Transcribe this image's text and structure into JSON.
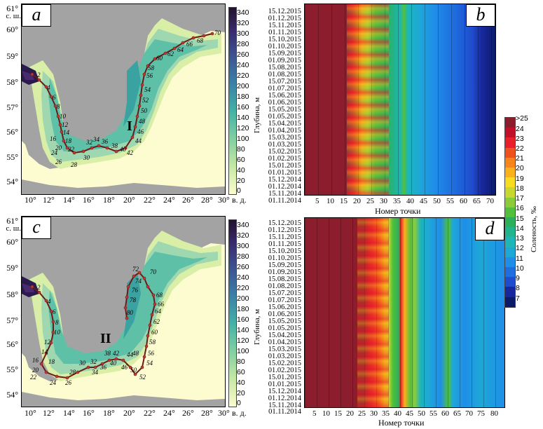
{
  "panels": {
    "a": "a",
    "b": "b",
    "c": "c",
    "d": "d"
  },
  "map": {
    "lat_labels": [
      "61°",
      "60°",
      "59°",
      "58°",
      "57°",
      "56°",
      "55°",
      "54°"
    ],
    "lat_unit": "с. ш.",
    "lon_labels": [
      "10°",
      "12°",
      "14°",
      "16°",
      "18°",
      "20°",
      "22°",
      "24°",
      "26°",
      "28°",
      "30°"
    ],
    "lon_unit": "в. д.",
    "depth_label": "Глубина, м",
    "depth_ticks": [
      "340",
      "320",
      "300",
      "280",
      "260",
      "240",
      "220",
      "200",
      "180",
      "160",
      "140",
      "120",
      "100",
      "80",
      "60",
      "40",
      "20",
      "0"
    ],
    "transect_a_label": "I",
    "transect_c_label": "II",
    "transect_a_points": [
      "2",
      "4",
      "6",
      "8",
      "10",
      "12",
      "14",
      "16",
      "18",
      "20",
      "22",
      "24",
      "26",
      "28",
      "30",
      "32",
      "34",
      "36",
      "38",
      "40",
      "42",
      "44",
      "46",
      "48",
      "50",
      "52",
      "54",
      "56",
      "58",
      "60",
      "62",
      "64",
      "66",
      "68",
      "70"
    ],
    "transect_c_points": [
      "2",
      "4",
      "6",
      "8",
      "10",
      "12",
      "14",
      "16",
      "18",
      "20",
      "22",
      "24",
      "26",
      "28",
      "30",
      "32",
      "34",
      "36",
      "38",
      "40",
      "42",
      "44",
      "46",
      "48",
      "50",
      "52",
      "54",
      "56",
      "58",
      "60",
      "62",
      "64",
      "66",
      "68",
      "70",
      "72",
      "74",
      "76",
      "78",
      "80"
    ]
  },
  "hovmoller": {
    "dates": [
      "15.12.2015",
      "01.12.2015",
      "15.11.2015",
      "01.11.2015",
      "15.10.2015",
      "01.10.2015",
      "15.09.2015",
      "01.09.2015",
      "15.08.2015",
      "01.08.2015",
      "15.07.2015",
      "01.07.2015",
      "15.06.2015",
      "01.06.2015",
      "15.05.2015",
      "01.05.2015",
      "15.04.2015",
      "01.04.2015",
      "15.03.2015",
      "01.03.2015",
      "15.02.2015",
      "01.02.2015",
      "15.01.2015",
      "01.01.2015",
      "15.12.2014",
      "01.12.2014",
      "15.11.2014",
      "01.11.2014"
    ],
    "x_ticks_b": [
      "5",
      "10",
      "15",
      "20",
      "25",
      "30",
      "35",
      "40",
      "45",
      "50",
      "55",
      "60",
      "65",
      "70"
    ],
    "x_ticks_d": [
      "5",
      "10",
      "15",
      "20",
      "25",
      "30",
      "35",
      "40",
      "45",
      "50",
      "55",
      "60",
      "65",
      "70",
      "75",
      "80"
    ],
    "x_label": "Номер точки"
  },
  "salinity_bar": {
    "label": "Соленость, ‰",
    "ticks": [
      ">25",
      "24",
      "23",
      "22",
      "21",
      "20",
      "19",
      "18",
      "17",
      "16",
      "15",
      "14",
      "13",
      "12",
      "11",
      "10",
      "9",
      "8",
      "7"
    ],
    "colors": [
      "#8b1d2c",
      "#c0102a",
      "#e8202a",
      "#f0521e",
      "#f6851a",
      "#f9b21c",
      "#f8dc1e",
      "#c8d82e",
      "#8ccc3a",
      "#52c03c",
      "#2eb05a",
      "#22b48a",
      "#1eb6b6",
      "#1ea8d8",
      "#1f8ee8",
      "#1f6ee0",
      "#1f4ccc",
      "#17289c",
      "#0c1a6a"
    ]
  }
}
